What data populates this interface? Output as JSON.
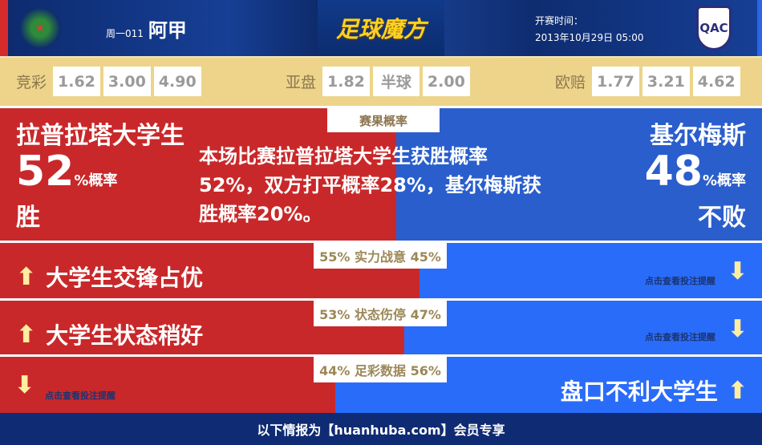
{
  "header": {
    "match_no": "周一011",
    "league": "阿甲",
    "brand": "足球魔方",
    "time_label": "开赛时间：",
    "time_value": "2013年10月29日 05:00",
    "away_logo_text": "QAC"
  },
  "odds": [
    {
      "label": "竞彩",
      "values": [
        "1.62",
        "3.00",
        "4.90"
      ]
    },
    {
      "label": "亚盘",
      "values": [
        "1.82",
        "半球",
        "2.00"
      ]
    },
    {
      "label": "欧赔",
      "values": [
        "1.77",
        "3.21",
        "4.62"
      ]
    }
  ],
  "result": {
    "tag": "赛果概率",
    "home_name": "拉普拉塔大学生",
    "home_pct": 52,
    "pct_suffix": "%概率",
    "home_result": "胜",
    "away_name": "基尔梅斯",
    "away_pct": 48,
    "away_result": "不败",
    "summary": "本场比赛拉普拉塔大学生获胜概率52%，双方打平概率28%，基尔梅斯获胜概率20%。"
  },
  "rows": [
    {
      "tag": "55% 实力战意 45%",
      "home": 55,
      "text": "大学生交锋占优",
      "side": "home",
      "arrow": "up",
      "hint": "点击查看投注提醒",
      "hint_arrow": "down"
    },
    {
      "tag": "53% 状态伤停 47%",
      "home": 53,
      "text": "大学生状态稍好",
      "side": "home",
      "arrow": "up",
      "hint": "点击查看投注提醒",
      "hint_arrow": "down"
    },
    {
      "tag": "44% 足彩数据 56%",
      "home": 44,
      "text": "盘口不利大学生",
      "side": "away",
      "arrow": "up",
      "hint": "点击查看投注提醒",
      "hint_arrow": "down"
    }
  ],
  "footer": "以下情报为【huanhuba.com】会员专享",
  "colors": {
    "home": "#c9282a",
    "away": "#2a6cfa",
    "header": "#0f2b73",
    "odds_bg": "#edd48a"
  }
}
